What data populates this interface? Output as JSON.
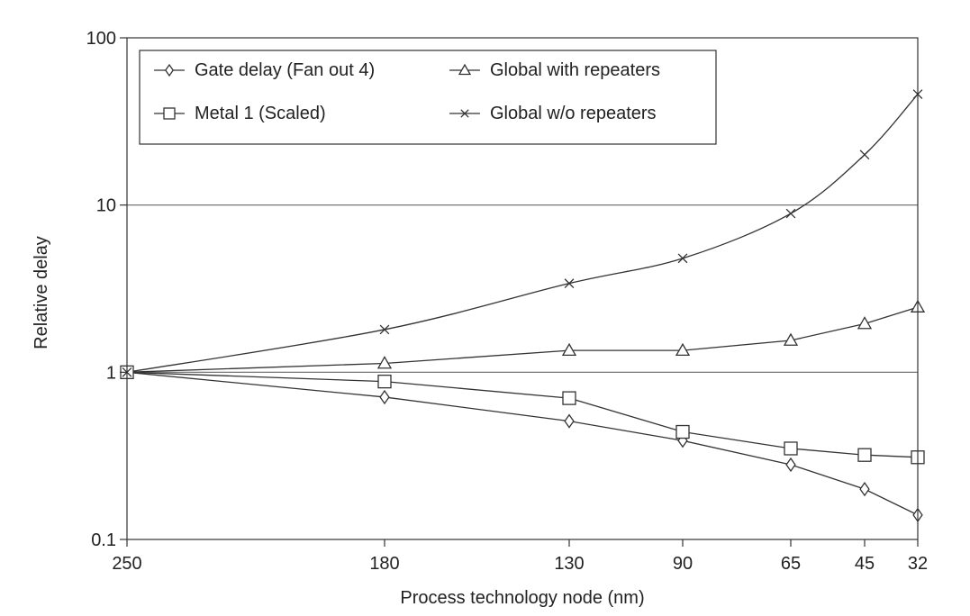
{
  "chart_data": {
    "type": "line",
    "title": "",
    "xlabel": "Process technology node (nm)",
    "ylabel": "Relative delay",
    "y_scale": "log",
    "ylim": [
      0.1,
      100
    ],
    "y_ticks": [
      "0.1",
      "1",
      "10",
      "100"
    ],
    "grid": "horizontal lines at 1 and 10",
    "legend_position": "top-left",
    "categories": [
      "250",
      "180",
      "130",
      "90",
      "65",
      "45",
      "32"
    ],
    "series": [
      {
        "name": "Gate delay (Fan out 4)",
        "marker": "diamond",
        "values": [
          1,
          0.71,
          0.51,
          0.39,
          0.28,
          0.2,
          0.14
        ]
      },
      {
        "name": "Metal 1 (Scaled)",
        "marker": "square",
        "values": [
          1,
          0.88,
          0.7,
          0.44,
          0.35,
          0.32,
          0.31
        ]
      },
      {
        "name": "Global with repeaters",
        "marker": "triangle",
        "values": [
          1,
          1.13,
          1.35,
          1.35,
          1.55,
          1.95,
          2.45
        ]
      },
      {
        "name": "Global w/o repeaters",
        "marker": "cross",
        "values": [
          1,
          1.8,
          3.4,
          4.8,
          8.9,
          20,
          46
        ]
      }
    ],
    "colors": {
      "line": "#333333",
      "frame": "#333333",
      "grid": "#666666"
    }
  }
}
